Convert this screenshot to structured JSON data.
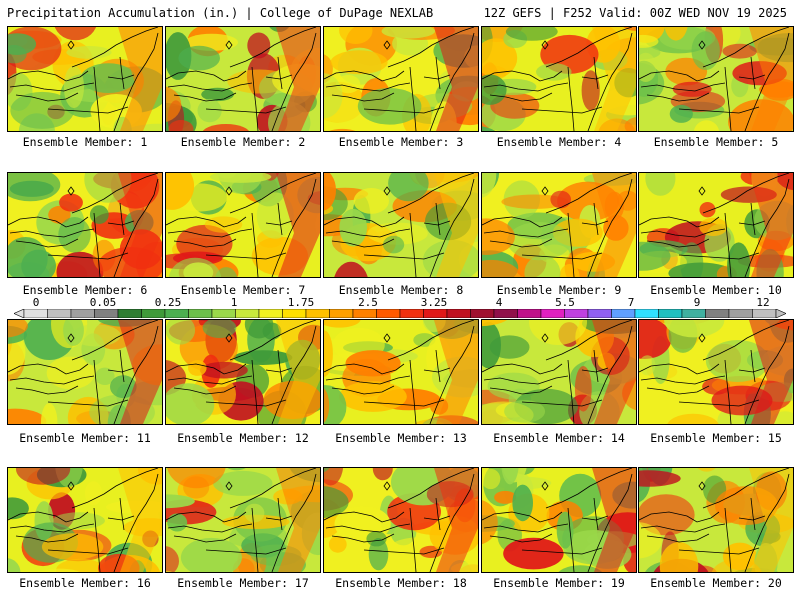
{
  "header": {
    "title_left": "Precipitation Accumulation (in.) | College of DuPage NEXLAB",
    "title_right": "12Z GEFS | F252 Valid: 00Z WED NOV 19 2025"
  },
  "panels": [
    {
      "label": "Ensemble Member: 1"
    },
    {
      "label": "Ensemble Member: 2"
    },
    {
      "label": "Ensemble Member: 3"
    },
    {
      "label": "Ensemble Member: 4"
    },
    {
      "label": "Ensemble Member: 5"
    },
    {
      "label": "Ensemble Member: 6"
    },
    {
      "label": "Ensemble Member: 7"
    },
    {
      "label": "Ensemble Member: 8"
    },
    {
      "label": "Ensemble Member: 9"
    },
    {
      "label": "Ensemble Member: 10"
    },
    {
      "label": "Ensemble Member: 11"
    },
    {
      "label": "Ensemble Member: 12"
    },
    {
      "label": "Ensemble Member: 13"
    },
    {
      "label": "Ensemble Member: 14"
    },
    {
      "label": "Ensemble Member: 15"
    },
    {
      "label": "Ensemble Member: 16"
    },
    {
      "label": "Ensemble Member: 17"
    },
    {
      "label": "Ensemble Member: 18"
    },
    {
      "label": "Ensemble Member: 19"
    },
    {
      "label": "Ensemble Member: 20"
    }
  ],
  "colorbar": {
    "ticks": [
      "0",
      "0.05",
      "0.25",
      "1",
      "1.75",
      "2.5",
      "3.25",
      "4",
      "5.5",
      "7",
      "9",
      "12"
    ],
    "colors": [
      "#e0e0e0",
      "#c0c0c0",
      "#a0a0a0",
      "#808080",
      "#2e7d32",
      "#3f9a3a",
      "#4caf50",
      "#6cc04a",
      "#9ad84a",
      "#c8e83c",
      "#f0f020",
      "#ffe000",
      "#ffc000",
      "#ffa000",
      "#ff8000",
      "#ff5a00",
      "#f03010",
      "#e01818",
      "#c01020",
      "#a01030",
      "#90104a",
      "#c0108a",
      "#e020c0",
      "#c040e0",
      "#9060f0",
      "#60a0ff",
      "#30e0ff",
      "#20c0c0",
      "#40b0a0",
      "#808080",
      "#a0a0a0",
      "#c0c0c0"
    ]
  }
}
